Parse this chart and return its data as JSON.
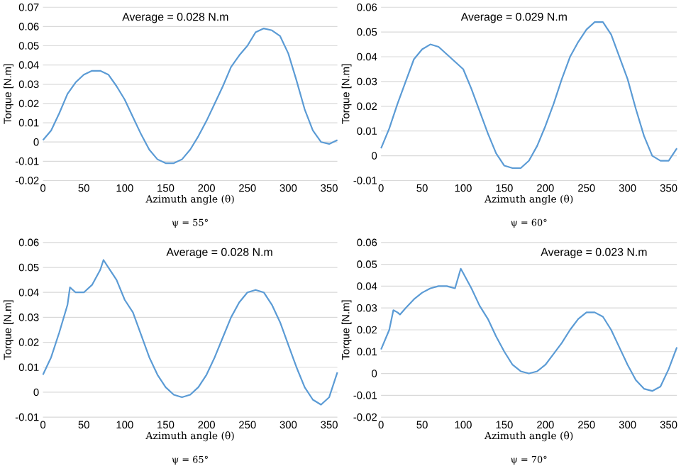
{
  "chart_data": [
    {
      "type": "line",
      "xlabel": "Azimuth angle (θ)",
      "ylabel": "Torque [N.m]",
      "annotations": [
        "Average = 0.028 N.m",
        "ψ = 55°"
      ],
      "xlim": [
        0,
        360
      ],
      "ylim": [
        -0.02,
        0.07
      ],
      "xticks": [
        0,
        50,
        100,
        150,
        200,
        250,
        300,
        350
      ],
      "yticks": [
        -0.02,
        -0.01,
        0,
        0.01,
        0.02,
        0.03,
        0.04,
        0.05,
        0.06,
        0.07
      ],
      "grid": "y",
      "color": "#5b9bd5",
      "x": [
        0,
        10,
        20,
        30,
        40,
        50,
        60,
        70,
        80,
        90,
        100,
        110,
        120,
        130,
        140,
        150,
        160,
        170,
        180,
        190,
        200,
        210,
        220,
        230,
        240,
        250,
        260,
        270,
        280,
        290,
        300,
        310,
        320,
        330,
        340,
        350,
        360
      ],
      "values": [
        0.001,
        0.006,
        0.015,
        0.025,
        0.031,
        0.035,
        0.037,
        0.037,
        0.035,
        0.029,
        0.022,
        0.013,
        0.004,
        -0.004,
        -0.009,
        -0.011,
        -0.011,
        -0.009,
        -0.004,
        0.003,
        0.011,
        0.02,
        0.029,
        0.039,
        0.045,
        0.05,
        0.057,
        0.059,
        0.058,
        0.055,
        0.046,
        0.032,
        0.017,
        0.006,
        0.0,
        -0.001,
        0.001
      ]
    },
    {
      "type": "line",
      "xlabel": "Azimuth angle (θ)",
      "ylabel": "Torque [N.m]",
      "annotations": [
        "Average = 0.029 N.m",
        "ψ = 60°"
      ],
      "xlim": [
        0,
        360
      ],
      "ylim": [
        -0.01,
        0.06
      ],
      "xticks": [
        0,
        50,
        100,
        150,
        200,
        250,
        300,
        350
      ],
      "yticks": [
        -0.01,
        0,
        0.01,
        0.02,
        0.03,
        0.04,
        0.05,
        0.06
      ],
      "grid": "y",
      "color": "#5b9bd5",
      "x": [
        0,
        10,
        20,
        30,
        40,
        50,
        60,
        70,
        80,
        90,
        100,
        110,
        120,
        130,
        140,
        150,
        160,
        170,
        180,
        190,
        200,
        210,
        220,
        230,
        240,
        250,
        260,
        270,
        280,
        290,
        300,
        310,
        320,
        330,
        340,
        350,
        360
      ],
      "values": [
        0.003,
        0.011,
        0.021,
        0.03,
        0.039,
        0.043,
        0.045,
        0.044,
        0.041,
        0.038,
        0.035,
        0.027,
        0.018,
        0.009,
        0.001,
        -0.004,
        -0.005,
        -0.005,
        -0.002,
        0.004,
        0.012,
        0.021,
        0.031,
        0.04,
        0.046,
        0.051,
        0.054,
        0.054,
        0.049,
        0.04,
        0.031,
        0.019,
        0.008,
        0.0,
        -0.002,
        -0.002,
        0.003
      ]
    },
    {
      "type": "line",
      "xlabel": "Azimuth angle (θ)",
      "ylabel": "Torque [N.m]",
      "annotations": [
        "Average = 0.028 N.m",
        "ψ = 65°"
      ],
      "xlim": [
        0,
        360
      ],
      "ylim": [
        -0.01,
        0.06
      ],
      "xticks": [
        0,
        50,
        100,
        150,
        200,
        250,
        300,
        350
      ],
      "yticks": [
        -0.01,
        0,
        0.01,
        0.02,
        0.03,
        0.04,
        0.05,
        0.06
      ],
      "grid": "y",
      "color": "#5b9bd5",
      "x": [
        0,
        10,
        20,
        30,
        33,
        40,
        50,
        60,
        70,
        74,
        80,
        90,
        100,
        110,
        120,
        130,
        140,
        150,
        160,
        170,
        180,
        190,
        200,
        210,
        220,
        230,
        240,
        250,
        260,
        270,
        280,
        290,
        300,
        310,
        320,
        330,
        340,
        350,
        360
      ],
      "values": [
        0.007,
        0.014,
        0.024,
        0.035,
        0.042,
        0.04,
        0.04,
        0.043,
        0.049,
        0.053,
        0.05,
        0.045,
        0.037,
        0.032,
        0.023,
        0.014,
        0.007,
        0.002,
        -0.001,
        -0.002,
        -0.001,
        0.002,
        0.007,
        0.014,
        0.022,
        0.03,
        0.036,
        0.04,
        0.041,
        0.04,
        0.035,
        0.028,
        0.019,
        0.01,
        0.002,
        -0.003,
        -0.005,
        -0.002,
        0.008
      ]
    },
    {
      "type": "line",
      "xlabel": "Azimuth angle (θ)",
      "ylabel": "Torque [N.m]",
      "annotations": [
        "Average = 0.023 N.m",
        "ψ = 70°"
      ],
      "xlim": [
        0,
        360
      ],
      "ylim": [
        -0.02,
        0.06
      ],
      "xticks": [
        0,
        50,
        100,
        150,
        200,
        250,
        300,
        350
      ],
      "yticks": [
        -0.02,
        -0.01,
        0,
        0.01,
        0.02,
        0.03,
        0.04,
        0.05,
        0.06
      ],
      "grid": "y",
      "color": "#5b9bd5",
      "x": [
        0,
        10,
        15,
        20,
        23,
        30,
        40,
        50,
        60,
        70,
        80,
        90,
        97,
        100,
        110,
        120,
        130,
        140,
        150,
        160,
        170,
        180,
        190,
        200,
        210,
        220,
        230,
        240,
        250,
        260,
        270,
        280,
        290,
        300,
        310,
        320,
        330,
        340,
        350,
        360
      ],
      "values": [
        0.011,
        0.02,
        0.029,
        0.028,
        0.027,
        0.03,
        0.034,
        0.037,
        0.039,
        0.04,
        0.04,
        0.039,
        0.048,
        0.046,
        0.039,
        0.031,
        0.025,
        0.017,
        0.01,
        0.004,
        0.001,
        0.0,
        0.001,
        0.004,
        0.009,
        0.014,
        0.02,
        0.025,
        0.028,
        0.028,
        0.026,
        0.02,
        0.012,
        0.004,
        -0.003,
        -0.007,
        -0.008,
        -0.006,
        0.002,
        0.012
      ]
    }
  ]
}
